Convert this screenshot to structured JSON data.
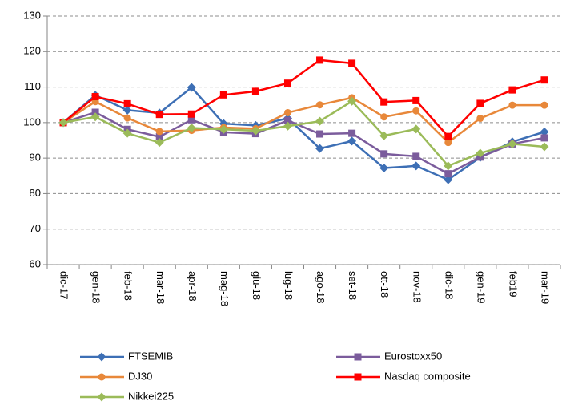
{
  "chart_data": {
    "type": "line",
    "categories": [
      "dic-17",
      "gen-18",
      "feb-18",
      "mar-18",
      "apr-18",
      "mag-18",
      "giu-18",
      "lug-18",
      "ago-18",
      "set-18",
      "ott-18",
      "nov-18",
      "dic-18",
      "gen-19",
      "feb19",
      "mar-19"
    ],
    "series": [
      {
        "name": "FTSEMIB",
        "color": "#3d6fb5",
        "marker": "diamond",
        "values": [
          100,
          107.7,
          103.5,
          102.7,
          109.9,
          99.7,
          99.2,
          101.2,
          92.7,
          94.8,
          87.2,
          87.8,
          83.9,
          90.2,
          94.6,
          97.4
        ]
      },
      {
        "name": "Eurostoxx50",
        "color": "#7b5c9c",
        "marker": "square",
        "values": [
          100,
          102.9,
          98.1,
          96.0,
          100.8,
          97.3,
          96.9,
          100.6,
          96.8,
          97.0,
          91.2,
          90.5,
          85.6,
          90.3,
          94.0,
          95.7
        ]
      },
      {
        "name": "DJ30",
        "color": "#e8883a",
        "marker": "circle",
        "values": [
          100,
          105.9,
          101.3,
          97.5,
          97.8,
          98.6,
          98.3,
          102.8,
          105.0,
          107.0,
          101.6,
          103.3,
          94.4,
          101.2,
          104.9,
          104.9
        ]
      },
      {
        "name": "Nasdaq composite",
        "color": "#ff0000",
        "marker": "square",
        "values": [
          100,
          107.3,
          105.3,
          102.3,
          102.4,
          107.8,
          108.8,
          111.1,
          117.6,
          116.7,
          105.8,
          106.2,
          96.1,
          105.4,
          109.2,
          112.0
        ]
      },
      {
        "name": "Nikkei225",
        "color": "#9bbb59",
        "marker": "diamond",
        "values": [
          100,
          101.6,
          97.0,
          94.4,
          98.5,
          98.1,
          97.7,
          99.0,
          100.4,
          106.0,
          96.3,
          98.2,
          87.8,
          91.4,
          94.0,
          93.2
        ]
      }
    ],
    "ylim": [
      60,
      130
    ],
    "yticks": [
      60,
      70,
      80,
      90,
      100,
      110,
      120,
      130
    ],
    "grid": true
  }
}
